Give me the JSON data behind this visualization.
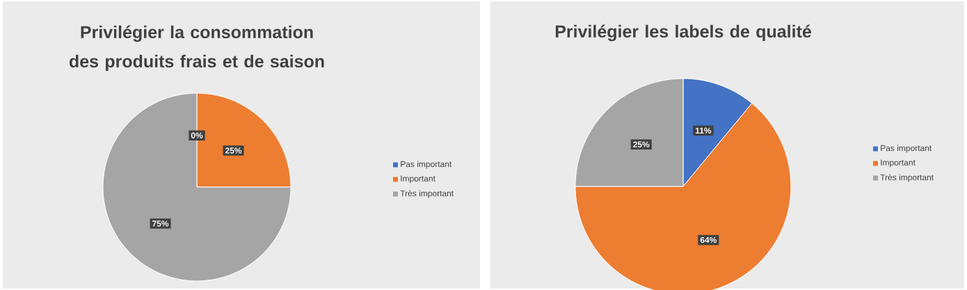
{
  "chart_data": [
    {
      "type": "pie",
      "title": "Privilégier la consommation des produits frais et de saison",
      "categories": [
        "Pas important",
        "Important",
        "Très important"
      ],
      "values": [
        0,
        25,
        75
      ],
      "colors": [
        "#4472c4",
        "#ed7d31",
        "#a5a5a5"
      ],
      "value_labels": [
        "0%",
        "25%",
        "75%"
      ],
      "legend": "right"
    },
    {
      "type": "pie",
      "title": "Privilégier les labels de qualité",
      "categories": [
        "Pas important",
        "Important",
        "Très important"
      ],
      "values": [
        11,
        64,
        25
      ],
      "colors": [
        "#4472c4",
        "#ed7d31",
        "#a5a5a5"
      ],
      "value_labels": [
        "11%",
        "64%",
        "25%"
      ],
      "legend": "right"
    }
  ]
}
